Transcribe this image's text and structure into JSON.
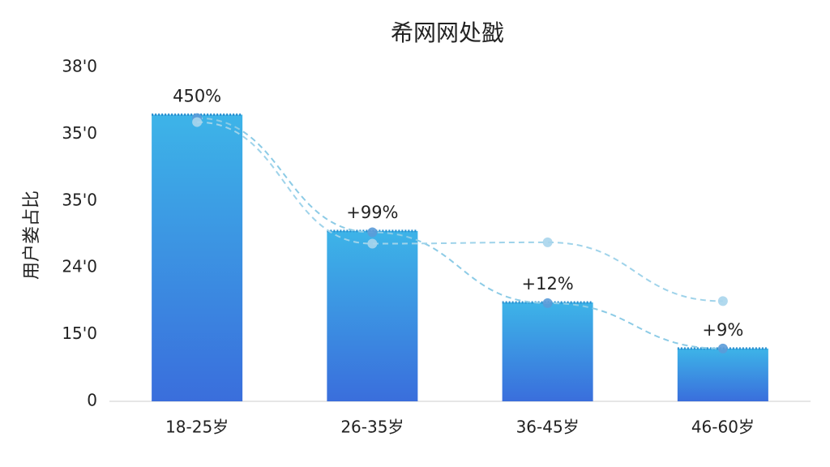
{
  "chart_data": {
    "type": "bar",
    "title": "希网网处戤",
    "y_label": "用户娄占比",
    "categories": [
      "18-25岁",
      "26-35岁",
      "36-45岁",
      "46-60岁"
    ],
    "values": [
      429,
      255,
      148,
      79
    ],
    "annotations": [
      "450%",
      "+99%",
      "+12%",
      "+9%"
    ],
    "lines": [
      {
        "color": "#8ccbe6",
        "values": [
          424,
          253,
          147,
          79
        ]
      },
      {
        "color": "#9fd3ea",
        "values": [
          418,
          236,
          238,
          150
        ]
      }
    ],
    "ylim": [
      0,
      500
    ],
    "yticks": [
      0,
      {
        "value": 100,
        "label": "15'0"
      },
      {
        "value": 200,
        "label": "24'0"
      },
      {
        "value": 300,
        "label": "35'0"
      },
      {
        "value": 400,
        "label": "35'0"
      },
      {
        "value": 500,
        "label": "38'0"
      }
    ],
    "grid": false
  }
}
